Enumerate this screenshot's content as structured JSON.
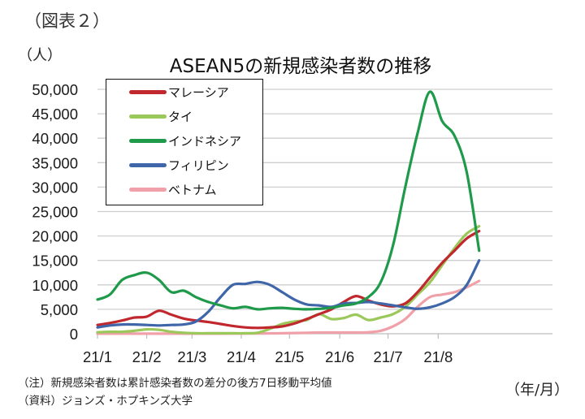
{
  "figure_label": "（図表２）",
  "unit_label": "（人）",
  "x_unit_label": "（年/月）",
  "note": "（注）新規感染者数は累計感染者数の差分の後方7日移動平均値",
  "source": "（資料）ジョンズ・ホプキンズ大学",
  "chart_data": {
    "type": "line",
    "title": "ASEAN5の新規感染者数の推移",
    "xlabel": "（年/月）",
    "ylabel": "（人）",
    "ylim": [
      0,
      50000
    ],
    "yticks": [
      "0",
      "5,000",
      "10,000",
      "15,000",
      "20,000",
      "25,000",
      "30,000",
      "35,000",
      "40,000",
      "45,000",
      "50,000"
    ],
    "grid": true,
    "legend_position": "upper-left (inside)",
    "x_tick_labels": [
      "21/1",
      "21/2",
      "21/3",
      "21/4",
      "21/5",
      "21/6",
      "21/7",
      "21/8"
    ],
    "x_approx_months": [
      0,
      0.25,
      0.5,
      0.75,
      1.0,
      1.25,
      1.5,
      1.75,
      2.0,
      2.25,
      2.5,
      2.75,
      3.0,
      3.25,
      3.5,
      3.75,
      4.0,
      4.25,
      4.5,
      4.75,
      5.0,
      5.25,
      5.5,
      5.75,
      6.0,
      6.25,
      6.5,
      6.75,
      7.0,
      7.25,
      7.5,
      7.75
    ],
    "series": [
      {
        "name": "マレーシア",
        "color": "#c0282d",
        "values": [
          1800,
          2200,
          2700,
          3300,
          3500,
          4700,
          3900,
          3100,
          2700,
          2400,
          2000,
          1600,
          1300,
          1200,
          1300,
          1500,
          2100,
          3000,
          4000,
          5000,
          6500,
          7700,
          6800,
          6000,
          5600,
          6200,
          8500,
          11500,
          14500,
          17000,
          19500,
          21000
        ]
      },
      {
        "name": "タイ",
        "color": "#9bc85a",
        "values": [
          300,
          400,
          400,
          600,
          900,
          800,
          400,
          200,
          100,
          100,
          100,
          100,
          100,
          200,
          1000,
          2000,
          2500,
          2800,
          4000,
          3000,
          3200,
          3900,
          2800,
          3300,
          4000,
          5500,
          8000,
          10500,
          14000,
          17500,
          20500,
          22000
        ]
      },
      {
        "name": "インドネシア",
        "color": "#1e9a4a",
        "values": [
          7000,
          8000,
          11000,
          12000,
          12500,
          11000,
          8500,
          8800,
          7500,
          6500,
          5800,
          5200,
          5500,
          5000,
          5200,
          5300,
          5100,
          5000,
          5100,
          5300,
          5800,
          6200,
          7500,
          10500,
          18000,
          30000,
          41000,
          49500,
          43500,
          40500,
          33000,
          17000
        ]
      },
      {
        "name": "フィリピン",
        "color": "#3f66a8",
        "values": [
          1300,
          1700,
          1900,
          1900,
          1800,
          1700,
          1800,
          1900,
          2500,
          4500,
          7500,
          10000,
          10200,
          10600,
          10000,
          8500,
          7000,
          6000,
          5800,
          5500,
          6200,
          6300,
          6500,
          6200,
          5800,
          5400,
          5100,
          5400,
          6200,
          7500,
          10000,
          15000
        ]
      },
      {
        "name": "ベトナム",
        "color": "#f0a0a8",
        "values": [
          20,
          20,
          20,
          20,
          20,
          20,
          20,
          20,
          20,
          20,
          20,
          30,
          40,
          50,
          80,
          100,
          150,
          200,
          250,
          250,
          250,
          250,
          300,
          600,
          1500,
          3000,
          5500,
          7500,
          8000,
          8500,
          9500,
          10800
        ]
      }
    ]
  }
}
